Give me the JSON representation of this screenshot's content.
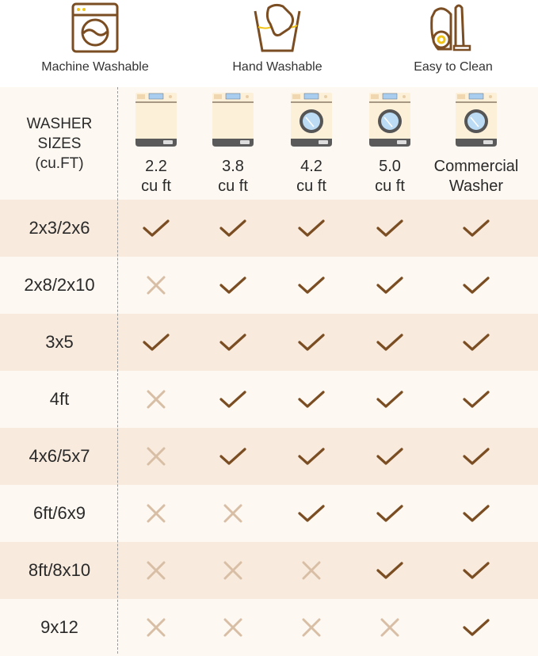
{
  "features": [
    {
      "label": "Machine Washable",
      "icon": "washing-machine-icon"
    },
    {
      "label": "Hand Washable",
      "icon": "hand-wash-icon"
    },
    {
      "label": "Easy to Clean",
      "icon": "vacuum-icon"
    }
  ],
  "table": {
    "header_label": [
      "WASHER",
      "SIZES",
      "(cu.FT)"
    ],
    "columns": [
      {
        "line1": "2.2",
        "line2": "cu ft",
        "icon": "top-load-washer-icon"
      },
      {
        "line1": "3.8",
        "line2": "cu ft",
        "icon": "top-load-washer-icon"
      },
      {
        "line1": "4.2",
        "line2": "cu ft",
        "icon": "front-load-washer-icon"
      },
      {
        "line1": "5.0",
        "line2": "cu ft",
        "icon": "front-load-washer-icon"
      },
      {
        "line1": "Commercial",
        "line2": "Washer",
        "icon": "front-load-washer-icon"
      }
    ],
    "rows": [
      {
        "size": "2x3/2x6",
        "fits": [
          true,
          true,
          true,
          true,
          true
        ]
      },
      {
        "size": "2x8/2x10",
        "fits": [
          false,
          true,
          true,
          true,
          true
        ]
      },
      {
        "size": "3x5",
        "fits": [
          true,
          true,
          true,
          true,
          true
        ]
      },
      {
        "size": "4ft",
        "fits": [
          false,
          true,
          true,
          true,
          true
        ]
      },
      {
        "size": "4x6/5x7",
        "fits": [
          false,
          true,
          true,
          true,
          true
        ]
      },
      {
        "size": "6ft/6x9",
        "fits": [
          false,
          false,
          true,
          true,
          true
        ]
      },
      {
        "size": "8ft/8x10",
        "fits": [
          false,
          false,
          false,
          true,
          true
        ]
      },
      {
        "size": "9x12",
        "fits": [
          false,
          false,
          false,
          false,
          true
        ]
      }
    ]
  },
  "colors": {
    "brown": "#7b4d22",
    "cross": "#d8bea5",
    "accent_yellow": "#f0c419",
    "row_tan": "#f8eadd",
    "row_light": "#fdf8f1"
  }
}
